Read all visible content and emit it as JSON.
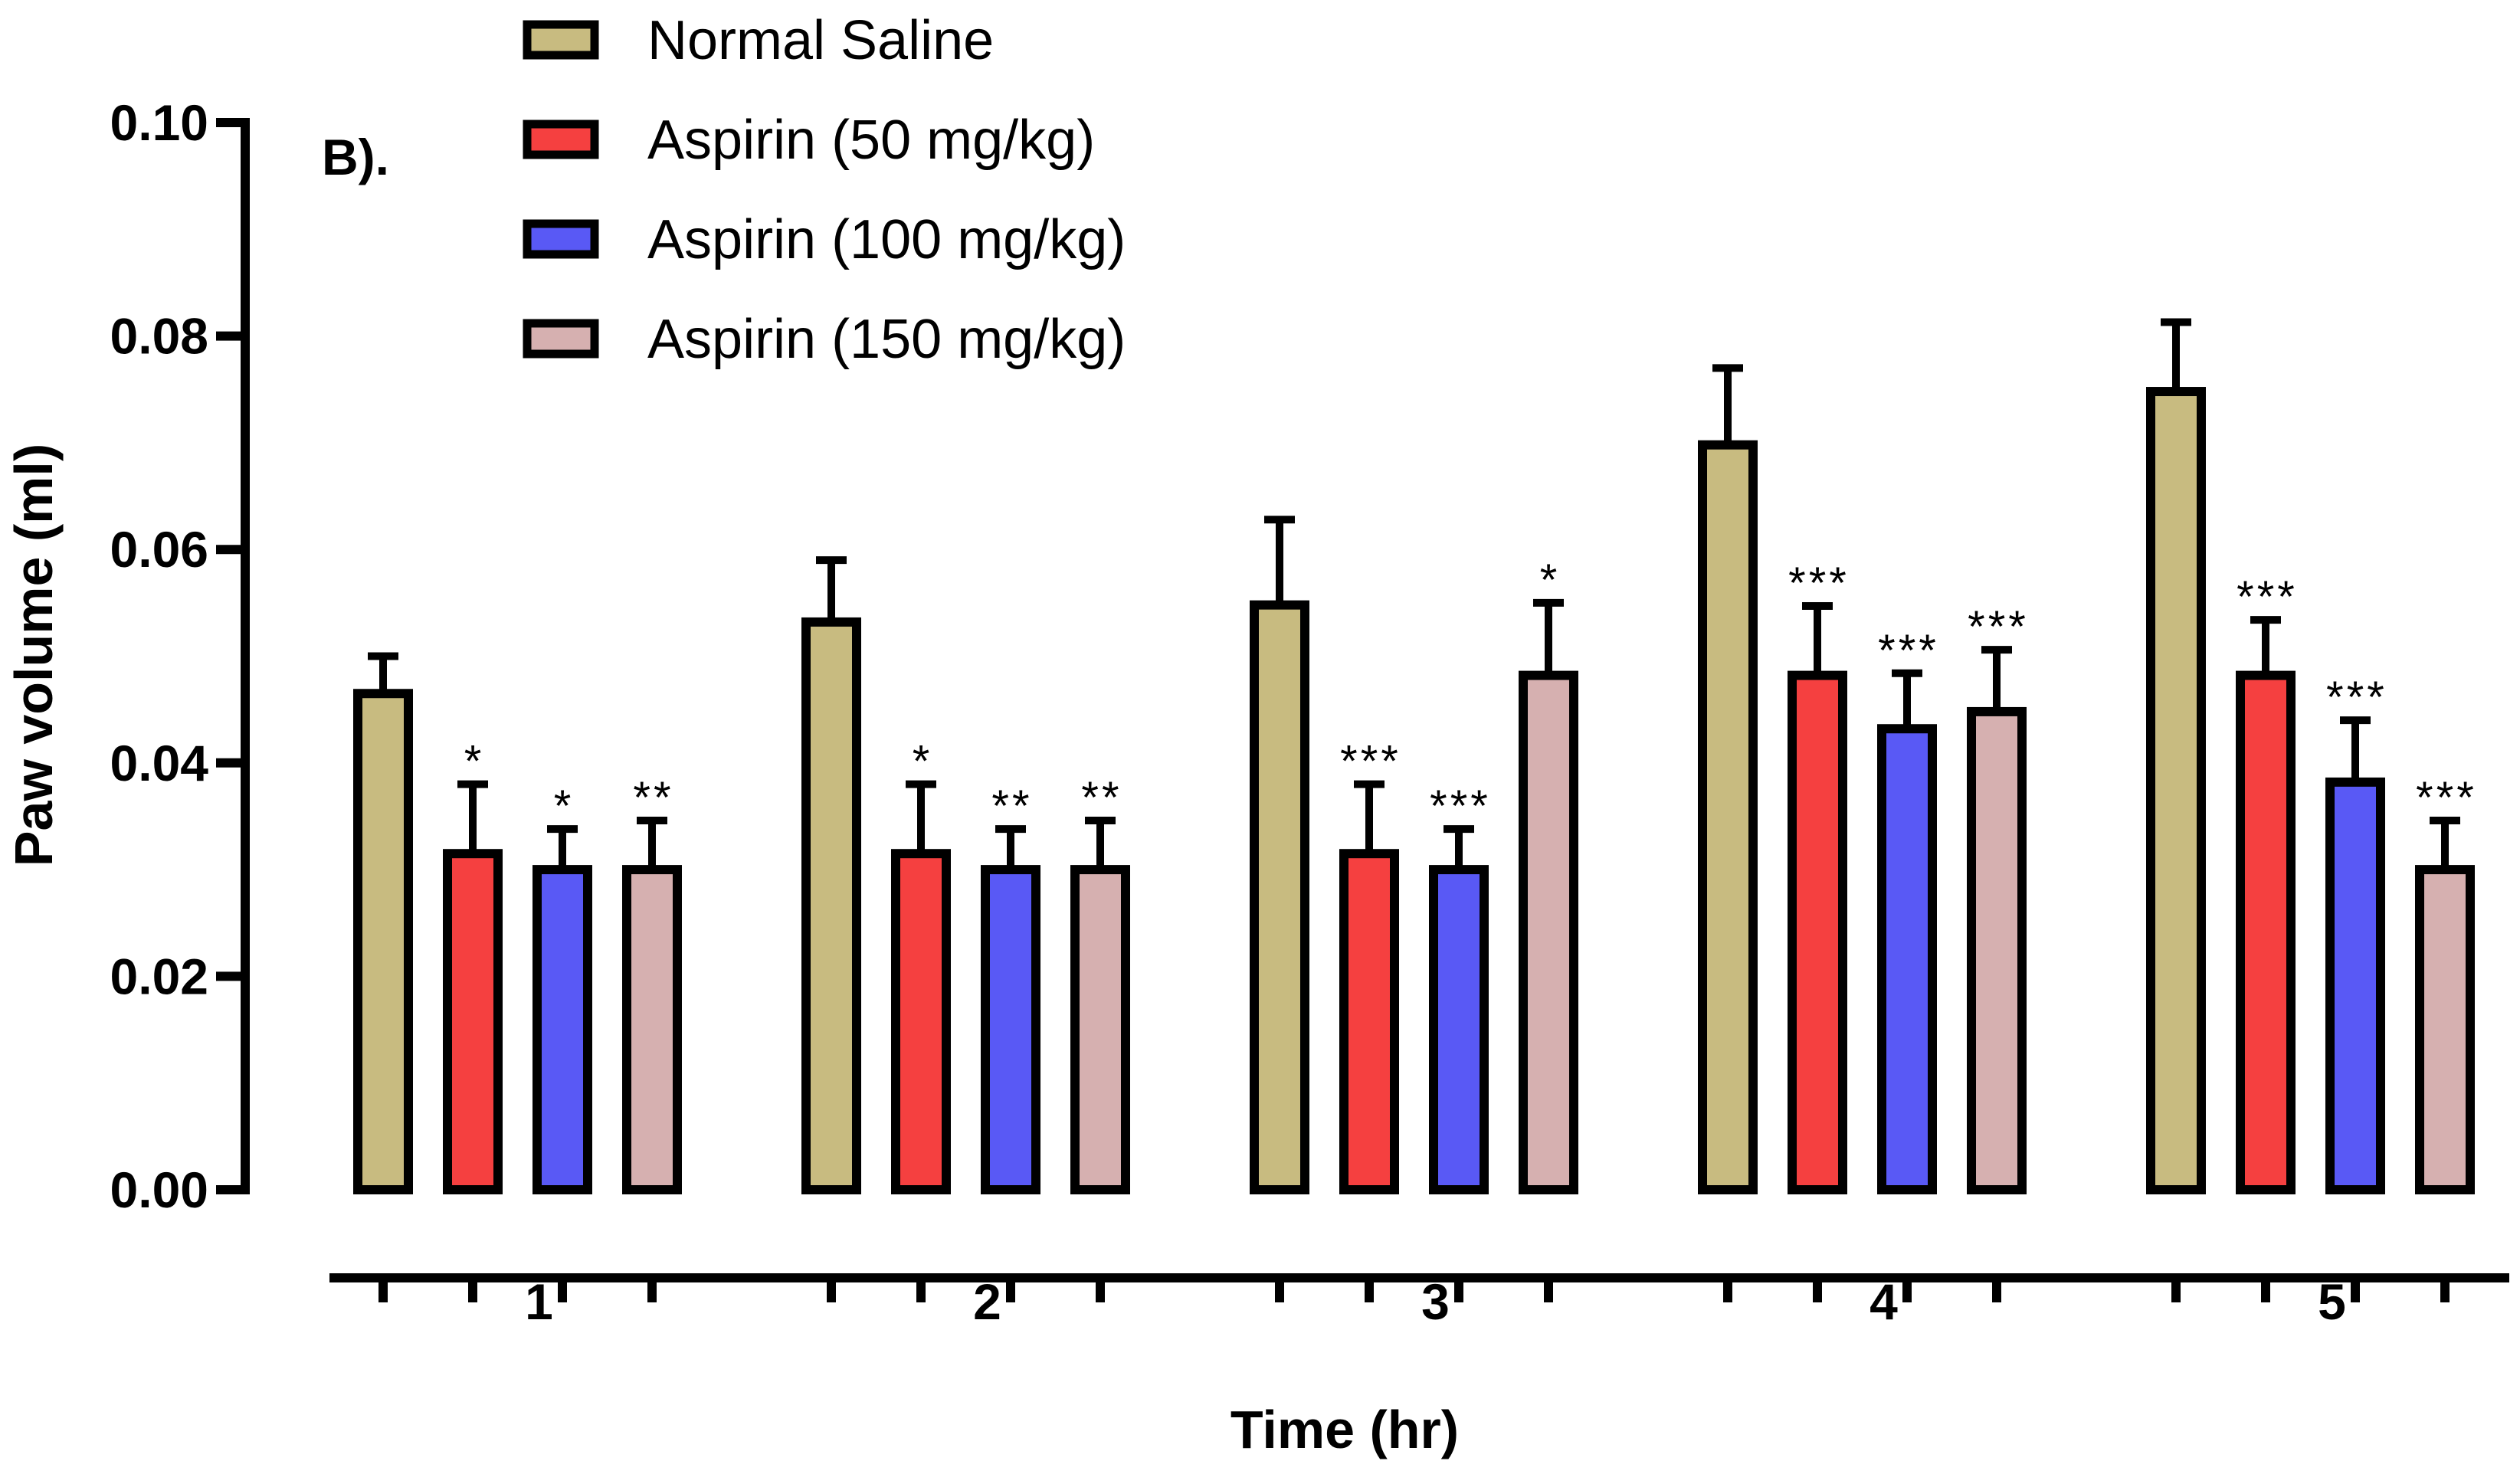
{
  "chart_data": {
    "type": "bar",
    "panel_label": "B).",
    "title": "",
    "xlabel": "Time (hr)",
    "ylabel": "Paw volume (ml)",
    "ylim": [
      0,
      0.1
    ],
    "yticks": [
      "0.00",
      "0.02",
      "0.04",
      "0.06",
      "0.08",
      "0.10"
    ],
    "ytick_values": [
      0,
      0.02,
      0.04,
      0.06,
      0.08,
      0.1
    ],
    "categories": [
      "1",
      "2",
      "3",
      "4",
      "5"
    ],
    "legend_position": "top-left",
    "series": [
      {
        "name": "Normal Saline",
        "color": "#c8bb80",
        "values": [
          0.0465,
          0.0532,
          0.0548,
          0.0698,
          0.0748
        ],
        "errors": [
          0.0035,
          0.0058,
          0.008,
          0.0072,
          0.0065
        ],
        "significance": [
          "",
          "",
          "",
          "",
          ""
        ]
      },
      {
        "name": "Aspirin (50 mg/kg)",
        "color": "#f54040",
        "values": [
          0.0315,
          0.0315,
          0.0315,
          0.0482,
          0.0482
        ],
        "errors": [
          0.0065,
          0.0065,
          0.0065,
          0.0065,
          0.0052
        ],
        "significance": [
          "*",
          "*",
          "***",
          "***",
          "***"
        ]
      },
      {
        "name": "Aspirin (100 mg/kg)",
        "color": "#5959f5",
        "values": [
          0.03,
          0.03,
          0.03,
          0.0432,
          0.0382
        ],
        "errors": [
          0.0038,
          0.0038,
          0.0038,
          0.0052,
          0.0058
        ],
        "significance": [
          "*",
          "**",
          "***",
          "***",
          "***"
        ]
      },
      {
        "name": "Aspirin (150 mg/kg)",
        "color": "#d6b0b0",
        "values": [
          0.03,
          0.03,
          0.0482,
          0.0448,
          0.03
        ],
        "errors": [
          0.0046,
          0.0046,
          0.0068,
          0.0058,
          0.0046
        ],
        "significance": [
          "**",
          "**",
          "*",
          "***",
          "***"
        ]
      }
    ]
  }
}
